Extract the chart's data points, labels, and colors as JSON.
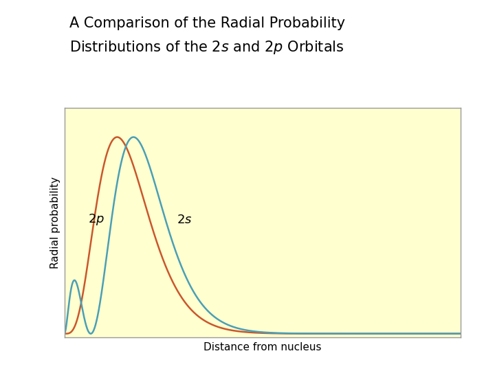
{
  "xlabel": "Distance from nucleus",
  "ylabel": "Radial probability",
  "bg_color_plot": "#FFFFD0",
  "bg_color_fig": "#FFFFFF",
  "color_2s": "#4A9FB5",
  "color_2p": "#C9572B",
  "title_line1": "A Comparison of the Radial Probability",
  "title_line2": "Distributions of the 2s and 2p Orbitals",
  "title_fontsize": 15,
  "axis_label_fontsize": 11,
  "annotation_fontsize": 13,
  "border_color": "#999999",
  "xlim": [
    0,
    30
  ],
  "ylim": [
    -0.02,
    1.15
  ]
}
